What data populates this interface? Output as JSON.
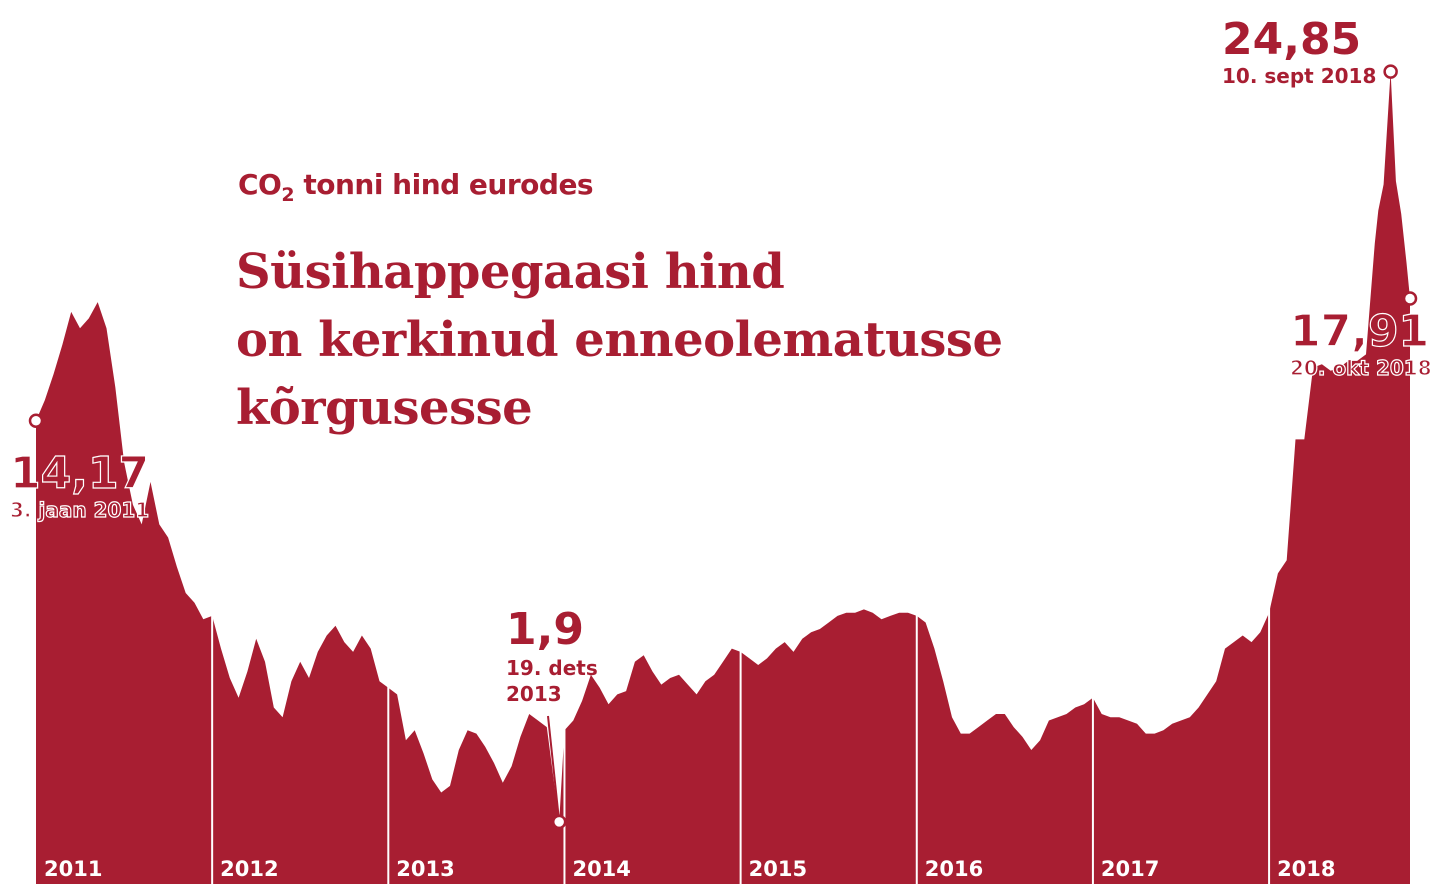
{
  "header": {
    "subtitle_main": "CO",
    "subtitle_sub": "2",
    "subtitle_rest": " tonni hind eurodes",
    "title_lines": [
      "Süsihappegaasi hind",
      "on kerkinud enneolematusse",
      "kõrgusesse"
    ]
  },
  "colors": {
    "fill": "#a81e32",
    "background": "#ffffff",
    "divider": "#ffffff"
  },
  "annotations": {
    "start": {
      "value": "14,17",
      "date": "3. jaan 2011"
    },
    "low": {
      "value": "1,9",
      "date_line1": "19. dets",
      "date_line2": "2013"
    },
    "peak": {
      "value": "24,85",
      "date": "10. sept 2018"
    },
    "end": {
      "value": "17,91",
      "date": "20. okt 2018"
    }
  },
  "chart_data": {
    "type": "area",
    "title": "Süsihappegaasi hind on kerkinud enneolematusse kõrgusesse",
    "subtitle": "CO2 tonni hind eurodes",
    "unit": "€ per tonn CO2",
    "x_tick_labels": [
      "2011",
      "2012",
      "2013",
      "2014",
      "2015",
      "2016",
      "2017",
      "2018"
    ],
    "xlim": [
      2011.0,
      2018.8
    ],
    "ylim": [
      0,
      26
    ],
    "grid": false,
    "legend": "none",
    "series": [
      {
        "x": [
          2011.0,
          2011.05,
          2011.1,
          2011.15,
          2011.2,
          2011.25,
          2011.3,
          2011.35,
          2011.4,
          2011.45,
          2011.5,
          2011.55,
          2011.6,
          2011.65,
          2011.7,
          2011.75,
          2011.8,
          2011.85,
          2011.9,
          2011.95,
          2012.0,
          2012.05,
          2012.1,
          2012.15,
          2012.2,
          2012.25,
          2012.3,
          2012.35,
          2012.4,
          2012.45,
          2012.5,
          2012.55,
          2012.6,
          2012.65,
          2012.7,
          2012.75,
          2012.8,
          2012.85,
          2012.9,
          2012.95,
          2013.0,
          2013.05,
          2013.1,
          2013.15,
          2013.2,
          2013.25,
          2013.3,
          2013.35,
          2013.4,
          2013.45,
          2013.5,
          2013.55,
          2013.6,
          2013.65,
          2013.7,
          2013.75,
          2013.8,
          2013.85,
          2013.9,
          2013.97,
          2014.0,
          2014.05,
          2014.1,
          2014.15,
          2014.2,
          2014.25,
          2014.3,
          2014.35,
          2014.4,
          2014.45,
          2014.5,
          2014.55,
          2014.6,
          2014.65,
          2014.7,
          2014.75,
          2014.8,
          2014.85,
          2014.9,
          2014.95,
          2015.0,
          2015.05,
          2015.1,
          2015.15,
          2015.2,
          2015.25,
          2015.3,
          2015.35,
          2015.4,
          2015.45,
          2015.5,
          2015.55,
          2015.6,
          2015.65,
          2015.7,
          2015.75,
          2015.8,
          2015.85,
          2015.9,
          2015.95,
          2016.0,
          2016.05,
          2016.1,
          2016.15,
          2016.2,
          2016.25,
          2016.3,
          2016.35,
          2016.4,
          2016.45,
          2016.5,
          2016.55,
          2016.6,
          2016.65,
          2016.7,
          2016.75,
          2016.8,
          2016.85,
          2016.9,
          2016.95,
          2017.0,
          2017.05,
          2017.1,
          2017.15,
          2017.2,
          2017.25,
          2017.3,
          2017.35,
          2017.4,
          2017.45,
          2017.5,
          2017.55,
          2017.6,
          2017.65,
          2017.7,
          2017.75,
          2017.8,
          2017.85,
          2017.9,
          2017.95,
          2018.0,
          2018.05,
          2018.1,
          2018.15,
          2018.2,
          2018.25,
          2018.3,
          2018.35,
          2018.4,
          2018.45,
          2018.5,
          2018.55,
          2018.6,
          2018.62,
          2018.65,
          2018.69,
          2018.72,
          2018.75,
          2018.78,
          2018.8
        ],
        "y": [
          14.17,
          14.8,
          15.6,
          16.5,
          17.5,
          17.0,
          17.3,
          17.8,
          17.0,
          15.2,
          12.9,
          11.6,
          11.0,
          12.3,
          11.0,
          10.6,
          9.7,
          8.9,
          8.6,
          8.1,
          8.2,
          7.2,
          6.3,
          5.7,
          6.5,
          7.5,
          6.8,
          5.4,
          5.1,
          6.2,
          6.8,
          6.3,
          7.1,
          7.6,
          7.9,
          7.4,
          7.1,
          7.6,
          7.2,
          6.2,
          6.0,
          5.8,
          4.4,
          4.7,
          4.0,
          3.2,
          2.8,
          3.0,
          4.1,
          4.7,
          4.6,
          4.2,
          3.7,
          3.1,
          3.6,
          4.5,
          5.2,
          5.0,
          4.8,
          1.9,
          4.7,
          5.0,
          5.6,
          6.4,
          6.0,
          5.5,
          5.8,
          5.9,
          6.8,
          7.0,
          6.5,
          6.1,
          6.3,
          6.4,
          6.1,
          5.8,
          6.2,
          6.4,
          6.8,
          7.2,
          7.1,
          6.9,
          6.7,
          6.9,
          7.2,
          7.4,
          7.1,
          7.5,
          7.7,
          7.8,
          8.0,
          8.2,
          8.3,
          8.3,
          8.4,
          8.3,
          8.1,
          8.2,
          8.3,
          8.3,
          8.2,
          8.0,
          7.2,
          6.2,
          5.1,
          4.6,
          4.6,
          4.8,
          5.0,
          5.2,
          5.2,
          4.8,
          4.5,
          4.1,
          4.4,
          5.0,
          5.1,
          5.2,
          5.4,
          5.5,
          5.7,
          5.2,
          5.1,
          5.1,
          5.0,
          4.9,
          4.6,
          4.6,
          4.7,
          4.9,
          5.0,
          5.1,
          5.4,
          5.8,
          6.2,
          7.2,
          7.4,
          7.6,
          7.4,
          7.7,
          8.3,
          9.5,
          9.9,
          13.6,
          13.6,
          15.8,
          15.9,
          15.7,
          15.8,
          16.0,
          16.0,
          16.2,
          19.6,
          20.6,
          21.4,
          24.85,
          21.5,
          20.5,
          19.0,
          17.91
        ]
      }
    ]
  }
}
